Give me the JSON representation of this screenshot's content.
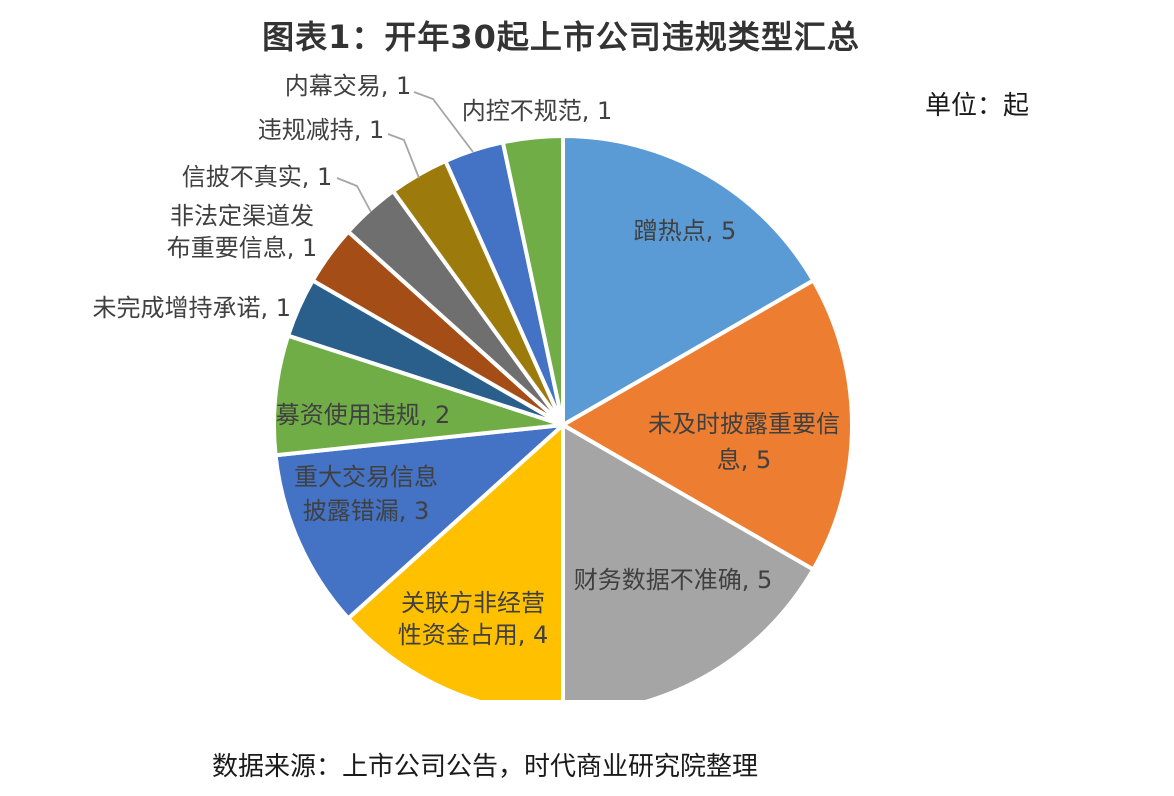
{
  "page": {
    "background": "#FFFFFF"
  },
  "header": {
    "title": "图表1：开年30起上市公司违规类型汇总",
    "unit_label": "单位：起"
  },
  "footer": {
    "source": "数据来源：上市公司公告，时代商业研究院整理"
  },
  "chart_data": {
    "type": "pie",
    "title": "图表1：开年30起上市公司违规类型汇总",
    "unit": "起",
    "total": 30,
    "legend_position": "none",
    "start_angle_deg": 0,
    "direction": "clockwise",
    "slice_border_color": "#FFFFFF",
    "label_color": "#404040",
    "leader_line_color": "#A6A6A6",
    "slices": [
      {
        "name": "蹭热点",
        "value": 5,
        "color": "#5B9BD5",
        "label_lines": [
          "蹭热点, 5"
        ],
        "label_placement": "inside"
      },
      {
        "name": "未及时披露重要信息",
        "value": 5,
        "color": "#ED7D31",
        "label_lines": [
          "未及时披露重要信",
          "息, 5"
        ],
        "label_placement": "inside"
      },
      {
        "name": "财务数据不准确",
        "value": 5,
        "color": "#A5A5A5",
        "label_lines": [
          "财务数据不准确, 5"
        ],
        "label_placement": "inside"
      },
      {
        "name": "关联方非经营性资金占用",
        "value": 4,
        "color": "#FFC000",
        "label_lines": [
          "关联方非经营",
          "性资金占用, 4"
        ],
        "label_placement": "inside"
      },
      {
        "name": "重大交易信息披露错漏",
        "value": 3,
        "color": "#4472C4",
        "label_lines": [
          "重大交易信息",
          "披露错漏, 3"
        ],
        "label_placement": "inside"
      },
      {
        "name": "募资使用违规",
        "value": 2,
        "color": "#70AD47",
        "label_lines": [
          "募资使用违规, 2"
        ],
        "label_placement": "inside"
      },
      {
        "name": "未完成增持承诺",
        "value": 1,
        "color": "#2A5F8C",
        "label_lines": [
          "未完成增持承诺, 1"
        ],
        "label_placement": "outside"
      },
      {
        "name": "非法定渠道发布重要信息",
        "value": 1,
        "color": "#A54D17",
        "label_lines": [
          "非法定渠道发",
          "布重要信息, 1"
        ],
        "label_placement": "outside"
      },
      {
        "name": "信披不真实",
        "value": 1,
        "color": "#6F6F6F",
        "label_lines": [
          "信披不真实, 1"
        ],
        "label_placement": "outside"
      },
      {
        "name": "违规减持",
        "value": 1,
        "color": "#9C7A0B",
        "label_lines": [
          "违规减持, 1"
        ],
        "label_placement": "outside"
      },
      {
        "name": "内幕交易",
        "value": 1,
        "color": "#4472C4",
        "label_lines": [
          "内幕交易, 1"
        ],
        "label_placement": "outside"
      },
      {
        "name": "内控不规范",
        "value": 1,
        "color": "#70AD47",
        "label_lines": [
          "内控不规范, 1"
        ],
        "label_placement": "outside"
      }
    ]
  }
}
